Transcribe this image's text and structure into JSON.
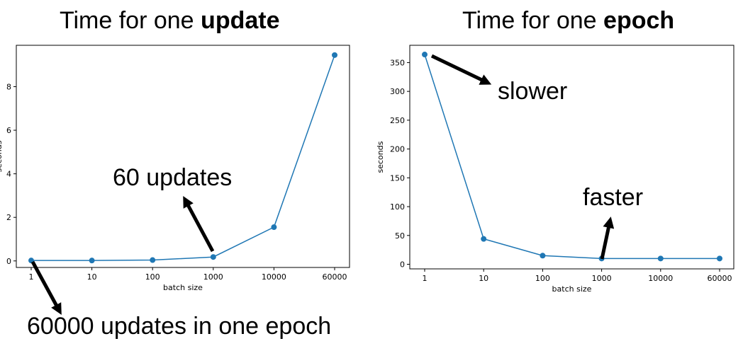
{
  "chart_data": [
    {
      "type": "line",
      "title": "Time for one update",
      "title_prefix": "Time for one ",
      "title_bold": "update",
      "xlabel": "batch size",
      "ylabel": "seconds",
      "x_scale": "categorical",
      "categories": [
        "1",
        "10",
        "100",
        "1000",
        "10000",
        "60000"
      ],
      "values": [
        0.02,
        0.02,
        0.04,
        0.18,
        1.55,
        9.45
      ],
      "ylim": [
        -0.3,
        9.9
      ],
      "yticks": [
        0,
        2,
        4,
        6,
        8
      ],
      "grid": false,
      "line_color": "#1f77b4",
      "annotations": [
        "60 updates",
        "60000 updates in one epoch"
      ]
    },
    {
      "type": "line",
      "title": "Time for one epoch",
      "title_prefix": "Time for one ",
      "title_bold": "epoch",
      "xlabel": "batch size",
      "ylabel": "seconds",
      "x_scale": "categorical",
      "categories": [
        "1",
        "10",
        "100",
        "1000",
        "10000",
        "60000"
      ],
      "values": [
        364,
        44,
        15,
        10,
        10,
        10
      ],
      "ylim": [
        -8,
        380
      ],
      "yticks": [
        0,
        50,
        100,
        150,
        200,
        250,
        300,
        350
      ],
      "grid": false,
      "line_color": "#1f77b4",
      "annotations": [
        "slower",
        "faster"
      ]
    }
  ]
}
